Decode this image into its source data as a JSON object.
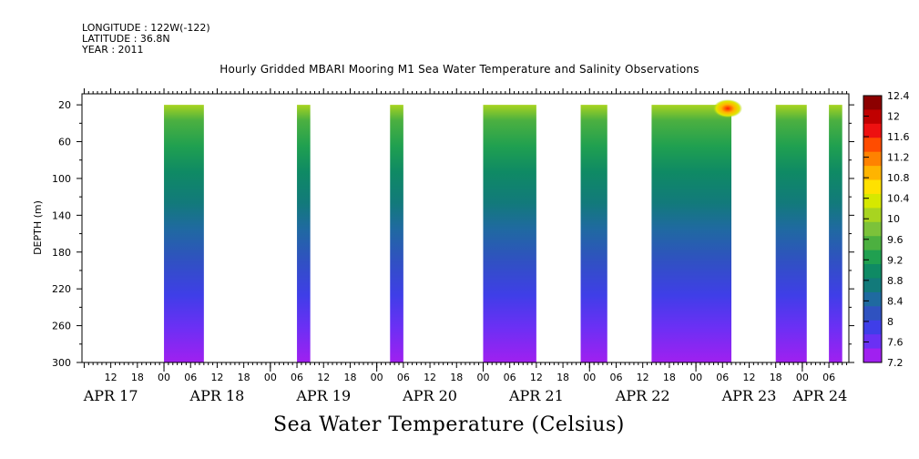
{
  "header": {
    "longitude": "LONGITUDE : 122W(-122)",
    "latitude": "LATITUDE : 36.8N",
    "year": "YEAR : 2011"
  },
  "chart_data": {
    "type": "heatmap",
    "title": "Hourly Gridded MBARI Mooring M1 Sea Water Temperature and Salinity Observations",
    "subtitle": "Sea Water Temperature (Celsius)",
    "ylabel": "DEPTH (m)",
    "xlabel": "",
    "y_ticks": [
      20,
      60,
      100,
      140,
      180,
      220,
      260,
      300
    ],
    "ylim": [
      300,
      8
    ],
    "x_hour_ticks": [
      {
        "t": 12,
        "label": "12"
      },
      {
        "t": 18,
        "label": "18"
      },
      {
        "t": 24,
        "label": "00"
      },
      {
        "t": 30,
        "label": "06"
      },
      {
        "t": 36,
        "label": "12"
      },
      {
        "t": 42,
        "label": "18"
      },
      {
        "t": 48,
        "label": "00"
      },
      {
        "t": 54,
        "label": "06"
      },
      {
        "t": 60,
        "label": "12"
      },
      {
        "t": 66,
        "label": "18"
      },
      {
        "t": 72,
        "label": "00"
      },
      {
        "t": 78,
        "label": "06"
      },
      {
        "t": 84,
        "label": "12"
      },
      {
        "t": 90,
        "label": "18"
      },
      {
        "t": 96,
        "label": "00"
      },
      {
        "t": 102,
        "label": "06"
      },
      {
        "t": 108,
        "label": "12"
      },
      {
        "t": 114,
        "label": "18"
      },
      {
        "t": 120,
        "label": "00"
      },
      {
        "t": 126,
        "label": "06"
      },
      {
        "t": 132,
        "label": "12"
      },
      {
        "t": 138,
        "label": "18"
      },
      {
        "t": 144,
        "label": "00"
      },
      {
        "t": 150,
        "label": "06"
      },
      {
        "t": 156,
        "label": "12"
      },
      {
        "t": 162,
        "label": "18"
      },
      {
        "t": 168,
        "label": "00"
      },
      {
        "t": 174,
        "label": "06"
      }
    ],
    "x_day_labels": [
      {
        "t": 12,
        "label": "APR 17"
      },
      {
        "t": 36,
        "label": "APR 18"
      },
      {
        "t": 60,
        "label": "APR 19"
      },
      {
        "t": 84,
        "label": "APR 20"
      },
      {
        "t": 108,
        "label": "APR 21"
      },
      {
        "t": 132,
        "label": "APR 22"
      },
      {
        "t": 156,
        "label": "APR 23"
      },
      {
        "t": 172,
        "label": "APR 24"
      }
    ],
    "x_range_hours_from_apr17_00": [
      5.5,
      178.5
    ],
    "data_blocks": [
      {
        "start": "APR 18 00:00",
        "end": "APR 18 09:00",
        "surface_temp": 9.4
      },
      {
        "start": "APR 19 06:00",
        "end": "APR 19 09:00",
        "surface_temp": 9.6
      },
      {
        "start": "APR 20 03:00",
        "end": "APR 20 06:00",
        "surface_temp": 9.6
      },
      {
        "start": "APR 21 00:00",
        "end": "APR 21 12:00",
        "surface_temp": 9.6
      },
      {
        "start": "APR 21 22:00",
        "end": "APR 22 04:00",
        "surface_temp": 9.8
      },
      {
        "start": "APR 22 14:00",
        "end": "APR 23 08:00",
        "surface_temp": 10.0,
        "max_temp": 12.0
      },
      {
        "start": "APR 23 18:00",
        "end": "APR 24 01:00",
        "surface_temp": 9.8
      },
      {
        "start": "APR 24 06:00",
        "end": "APR 24 09:00",
        "surface_temp": 9.8
      }
    ],
    "color_levels": [
      7.2,
      7.6,
      8,
      8.4,
      8.8,
      9.2,
      9.6,
      10,
      10.4,
      10.8,
      11.2,
      11.6,
      12,
      12.4
    ],
    "color_scale": {
      "labels": [
        "12.4",
        "12",
        "11.6",
        "11.2",
        "10.8",
        "10.4",
        "10",
        "9.6",
        "9.2",
        "8.8",
        "8.4",
        "8",
        "7.6",
        "7.2"
      ],
      "colors": [
        "#8c0000",
        "#c00000",
        "#ee1010",
        "#ff4c00",
        "#ff8200",
        "#ffb400",
        "#ffe100",
        "#d6e800",
        "#a8d420",
        "#7cc23a",
        "#4cb040",
        "#20a050",
        "#0f8a64",
        "#127a7a",
        "#1f6aa0",
        "#2f52c0",
        "#3f3ee8",
        "#6a30f4",
        "#a020f0"
      ]
    }
  }
}
